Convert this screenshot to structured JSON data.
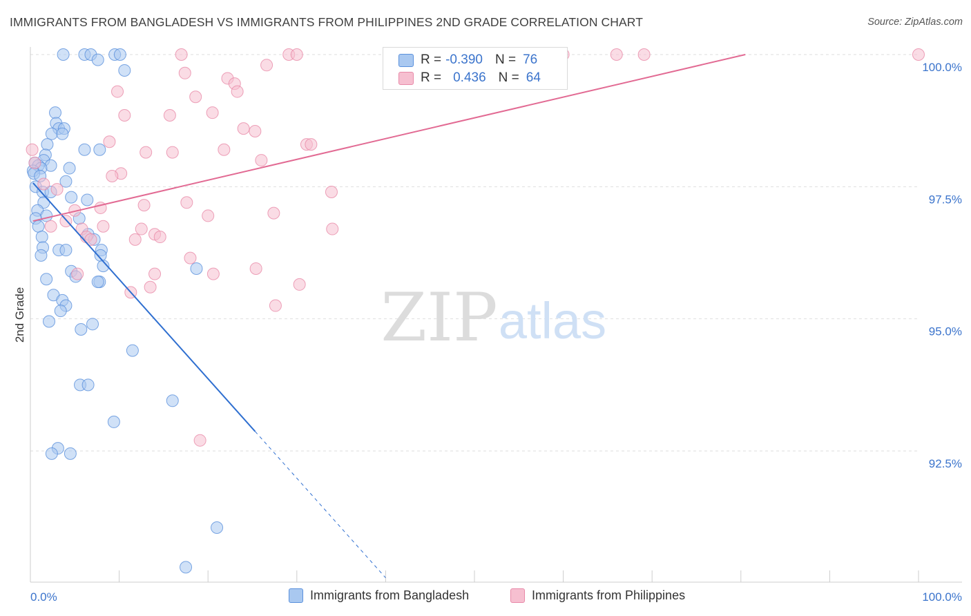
{
  "title": "IMMIGRANTS FROM BANGLADESH VS IMMIGRANTS FROM PHILIPPINES 2ND GRADE CORRELATION CHART",
  "source": "Source: ZipAtlas.com",
  "watermark": {
    "zip": "ZIP",
    "atlas": "atlas"
  },
  "colors": {
    "bangladesh_fill": "#a9c8f0",
    "bangladesh_stroke": "#5a90dc",
    "bangladesh_line": "#2f6fd0",
    "philippines_fill": "#f6bfd0",
    "philippines_stroke": "#e889a8",
    "philippines_line": "#e26a93",
    "axis_text": "#3b74cc",
    "grid": "#dedede"
  },
  "legend": {
    "r_label": "R =",
    "n_label": "N =",
    "rows": [
      {
        "r": "-0.390",
        "n": "76"
      },
      {
        "r": "0.436",
        "n": "64"
      }
    ]
  },
  "chart_data": {
    "type": "scatter",
    "title": "IMMIGRANTS FROM BANGLADESH VS IMMIGRANTS FROM PHILIPPINES 2ND GRADE CORRELATION CHART",
    "xlabel": "",
    "ylabel": "2nd Grade",
    "xlim": [
      0,
      100
    ],
    "ylim": [
      90.2,
      100.2
    ],
    "x_tick_labels": [
      "0.0%",
      "100.0%"
    ],
    "y_ticks": [
      92.5,
      95.0,
      97.5,
      100.0
    ],
    "y_tick_labels": [
      "92.5%",
      "95.0%",
      "97.5%",
      "100.0%"
    ],
    "grid": true,
    "legend_position": "bottom",
    "series": [
      {
        "name": "Immigrants from Bangladesh",
        "r": -0.39,
        "n": 76,
        "trend": {
          "x": [
            0.3,
            25.3
          ],
          "y": [
            97.57,
            92.87
          ]
        },
        "trend_extension": {
          "x": [
            25.3,
            40
          ],
          "y": [
            92.87,
            90.1
          ]
        },
        "points": [
          [
            3.7,
            100.0
          ],
          [
            6.1,
            100.0
          ],
          [
            6.8,
            100.0
          ],
          [
            9.5,
            100.0
          ],
          [
            10.1,
            100.0
          ],
          [
            7.6,
            99.9
          ],
          [
            10.6,
            99.7
          ],
          [
            2.8,
            98.9
          ],
          [
            2.9,
            98.7
          ],
          [
            3.2,
            98.6
          ],
          [
            3.8,
            98.6
          ],
          [
            2.4,
            98.5
          ],
          [
            3.6,
            98.5
          ],
          [
            1.9,
            98.3
          ],
          [
            6.1,
            98.2
          ],
          [
            7.8,
            98.2
          ],
          [
            1.7,
            98.1
          ],
          [
            1.5,
            98.0
          ],
          [
            0.5,
            97.95
          ],
          [
            2.3,
            97.9
          ],
          [
            0.9,
            97.9
          ],
          [
            1.2,
            97.85
          ],
          [
            0.3,
            97.8
          ],
          [
            0.4,
            97.75
          ],
          [
            1.1,
            97.7
          ],
          [
            4.4,
            97.85
          ],
          [
            4.0,
            97.6
          ],
          [
            0.6,
            97.5
          ],
          [
            1.4,
            97.4
          ],
          [
            2.3,
            97.4
          ],
          [
            1.5,
            97.2
          ],
          [
            6.4,
            97.25
          ],
          [
            4.6,
            97.3
          ],
          [
            0.8,
            97.05
          ],
          [
            1.8,
            96.95
          ],
          [
            0.6,
            96.9
          ],
          [
            5.5,
            96.9
          ],
          [
            0.9,
            96.75
          ],
          [
            1.3,
            96.55
          ],
          [
            6.5,
            96.6
          ],
          [
            7.2,
            96.5
          ],
          [
            1.4,
            96.35
          ],
          [
            3.2,
            96.3
          ],
          [
            4.0,
            96.3
          ],
          [
            8.0,
            96.3
          ],
          [
            1.2,
            96.2
          ],
          [
            7.9,
            96.2
          ],
          [
            8.2,
            96.0
          ],
          [
            18.7,
            95.95
          ],
          [
            4.6,
            95.9
          ],
          [
            5.1,
            95.8
          ],
          [
            1.8,
            95.75
          ],
          [
            7.8,
            95.7
          ],
          [
            7.6,
            95.7
          ],
          [
            2.6,
            95.45
          ],
          [
            3.6,
            95.35
          ],
          [
            4.0,
            95.25
          ],
          [
            3.4,
            95.15
          ],
          [
            2.1,
            94.95
          ],
          [
            7.0,
            94.9
          ],
          [
            5.7,
            94.8
          ],
          [
            11.5,
            94.4
          ],
          [
            5.6,
            93.75
          ],
          [
            6.5,
            93.75
          ],
          [
            16.0,
            93.45
          ],
          [
            9.4,
            93.05
          ],
          [
            3.1,
            92.55
          ],
          [
            2.4,
            92.45
          ],
          [
            4.5,
            92.45
          ],
          [
            21.0,
            91.05
          ],
          [
            17.5,
            90.3
          ]
        ]
      },
      {
        "name": "Immigrants from Philippines",
        "r": 0.436,
        "n": 64,
        "trend": {
          "x": [
            0.3,
            80.5
          ],
          "y": [
            96.85,
            100.0
          ]
        },
        "points": [
          [
            17.0,
            100.0
          ],
          [
            29.1,
            100.0
          ],
          [
            30.0,
            100.0
          ],
          [
            60.0,
            100.0
          ],
          [
            66.0,
            100.0
          ],
          [
            69.1,
            100.0
          ],
          [
            100.0,
            100.0
          ],
          [
            26.6,
            99.8
          ],
          [
            17.4,
            99.65
          ],
          [
            22.2,
            99.55
          ],
          [
            23.0,
            99.45
          ],
          [
            23.3,
            99.3
          ],
          [
            9.8,
            99.3
          ],
          [
            18.6,
            99.2
          ],
          [
            20.5,
            98.9
          ],
          [
            10.6,
            98.85
          ],
          [
            15.7,
            98.85
          ],
          [
            24.0,
            98.6
          ],
          [
            25.3,
            98.55
          ],
          [
            8.9,
            98.35
          ],
          [
            31.1,
            98.3
          ],
          [
            31.6,
            98.3
          ],
          [
            13.0,
            98.15
          ],
          [
            16.0,
            98.15
          ],
          [
            21.8,
            98.2
          ],
          [
            0.2,
            98.2
          ],
          [
            26.0,
            98.0
          ],
          [
            0.5,
            97.95
          ],
          [
            10.2,
            97.75
          ],
          [
            9.2,
            97.7
          ],
          [
            1.5,
            97.55
          ],
          [
            3.0,
            97.45
          ],
          [
            33.9,
            97.4
          ],
          [
            17.6,
            97.2
          ],
          [
            12.8,
            97.15
          ],
          [
            7.9,
            97.1
          ],
          [
            5.0,
            97.05
          ],
          [
            27.4,
            97.0
          ],
          [
            20.0,
            96.95
          ],
          [
            4.0,
            96.85
          ],
          [
            2.3,
            96.75
          ],
          [
            8.2,
            96.75
          ],
          [
            12.5,
            96.7
          ],
          [
            34.0,
            96.7
          ],
          [
            5.8,
            96.7
          ],
          [
            14.0,
            96.6
          ],
          [
            6.3,
            96.55
          ],
          [
            14.6,
            96.55
          ],
          [
            6.8,
            96.5
          ],
          [
            11.8,
            96.5
          ],
          [
            18.0,
            96.15
          ],
          [
            25.4,
            95.95
          ],
          [
            5.3,
            95.85
          ],
          [
            14.0,
            95.85
          ],
          [
            20.6,
            95.85
          ],
          [
            30.3,
            95.65
          ],
          [
            13.5,
            95.6
          ],
          [
            11.3,
            95.5
          ],
          [
            27.6,
            95.25
          ],
          [
            19.1,
            92.7
          ]
        ]
      }
    ]
  },
  "bottom_legend": [
    "Immigrants from Bangladesh",
    "Immigrants from Philippines"
  ]
}
